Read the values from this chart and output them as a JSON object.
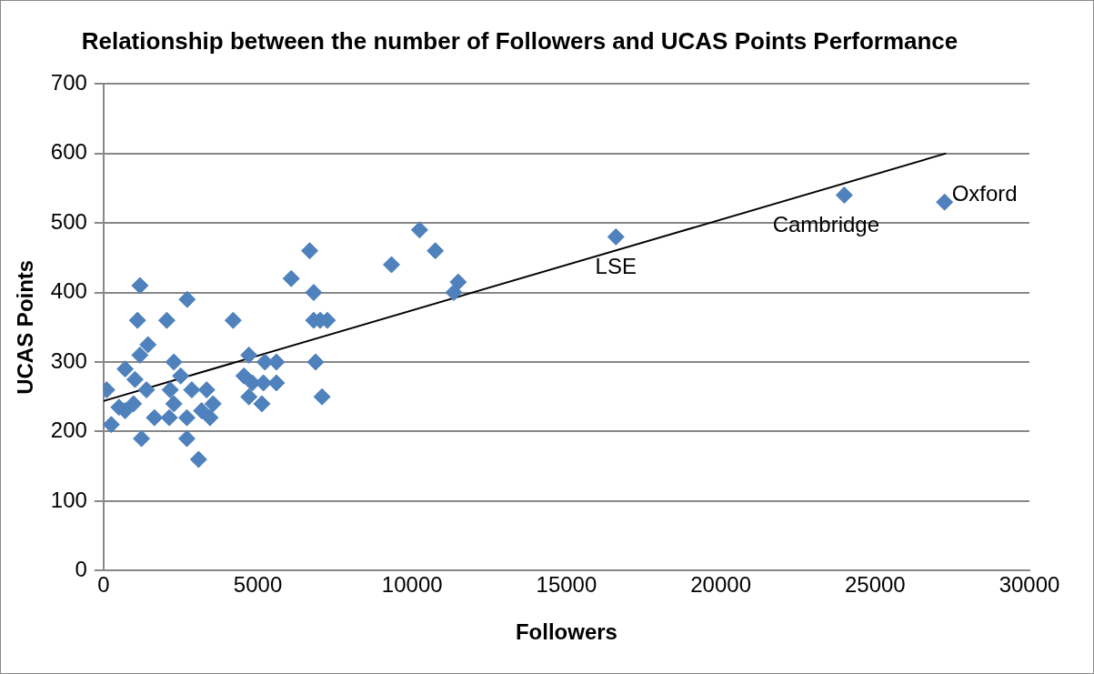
{
  "chart_data": {
    "type": "scatter",
    "title": "Relationship between the number of Followers and UCAS Points Performance",
    "xlabel": "Followers",
    "ylabel": "UCAS Points",
    "xlim": [
      0,
      30000
    ],
    "xticks": [
      0,
      5000,
      10000,
      15000,
      20000,
      25000,
      30000
    ],
    "ylim": [
      0,
      700
    ],
    "yticks": [
      0,
      100,
      200,
      300,
      400,
      500,
      600,
      700
    ],
    "grid": "y",
    "legend": false,
    "marker": "diamond",
    "series": [
      {
        "type": "scatter",
        "color": "#4f81bd",
        "x": [
          100,
          250,
          700,
          1180,
          1100,
          1180,
          1440,
          1020,
          1390,
          500,
          700,
          970,
          1230,
          1650,
          2050,
          2160,
          2280,
          2500,
          2280,
          2130,
          2710,
          2860,
          2700,
          2700,
          3080,
          3340,
          3550,
          3180,
          3450,
          4200,
          4710,
          4550,
          4820,
          4710,
          5130,
          5230,
          5600,
          5180,
          5600,
          6680,
          6080,
          6810,
          6810,
          7020,
          7250,
          6870,
          7080,
          9330,
          10240,
          10750,
          11490,
          11350,
          16600,
          24000,
          27250
        ],
        "values": [
          260,
          210,
          290,
          410,
          360,
          310,
          325,
          275,
          260,
          235,
          230,
          240,
          190,
          220,
          360,
          260,
          300,
          280,
          240,
          220,
          390,
          260,
          220,
          190,
          160,
          260,
          240,
          230,
          220,
          360,
          310,
          280,
          270,
          250,
          240,
          300,
          300,
          270,
          270,
          460,
          420,
          400,
          360,
          360,
          360,
          300,
          250,
          440,
          490,
          460,
          415,
          400,
          480,
          540,
          530
        ]
      },
      {
        "type": "line",
        "color": "#000000",
        "marker": "none",
        "x": [
          0,
          27300
        ],
        "values": [
          244,
          600
        ]
      }
    ],
    "annotations": [
      {
        "text": "LSE",
        "x": 16600,
        "y": 480
      },
      {
        "text": "Cambridge",
        "x": 24000,
        "y": 540
      },
      {
        "text": "Oxford",
        "x": 27250,
        "y": 530
      }
    ]
  }
}
